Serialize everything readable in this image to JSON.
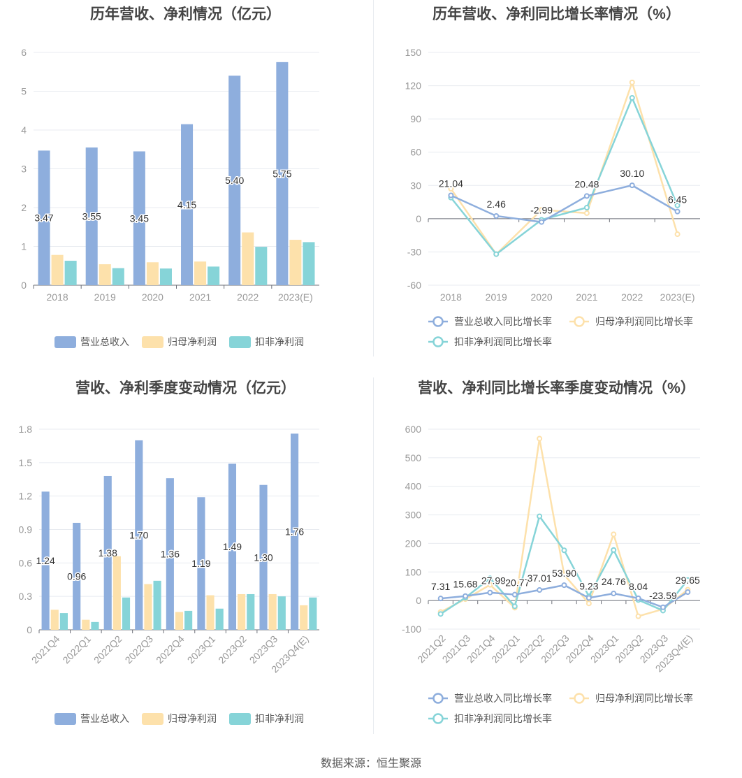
{
  "source": "数据来源：恒生聚源",
  "colors": {
    "revenue": "#8eaedd",
    "net_profit": "#fde1ab",
    "deducted": "#86d4d8",
    "axis_text": "#999999",
    "grid": "#e8ebf0",
    "label": "#333333"
  },
  "chart_data": [
    {
      "id": "annual_amount",
      "type": "bar",
      "title": "历年营收、净利情况（亿元）",
      "categories": [
        "2018",
        "2019",
        "2020",
        "2021",
        "2022",
        "2023(E)"
      ],
      "ylim": [
        0,
        6
      ],
      "yticks": [
        0,
        1,
        2,
        3,
        4,
        5,
        6
      ],
      "series": [
        {
          "name": "营业总收入",
          "color": "#8eaedd",
          "values": [
            3.47,
            3.55,
            3.45,
            4.15,
            5.4,
            5.75
          ],
          "labels": [
            "3.47",
            "3.55",
            "3.45",
            "4.15",
            "5.40",
            "5.75"
          ]
        },
        {
          "name": "归母净利润",
          "color": "#fde1ab",
          "values": [
            0.78,
            0.54,
            0.59,
            0.61,
            1.36,
            1.17
          ]
        },
        {
          "name": "扣非净利润",
          "color": "#86d4d8",
          "values": [
            0.63,
            0.44,
            0.43,
            0.48,
            0.99,
            1.11
          ]
        }
      ],
      "legend_position": "bottom",
      "grid": true
    },
    {
      "id": "annual_growth",
      "type": "line",
      "title": "历年营收、净利同比增长率情况（%）",
      "categories": [
        "2018",
        "2019",
        "2020",
        "2021",
        "2022",
        "2023(E)"
      ],
      "ylim": [
        -60,
        150
      ],
      "yticks": [
        -60,
        -30,
        0,
        30,
        60,
        90,
        120,
        150
      ],
      "series": [
        {
          "name": "营业总收入同比增长率",
          "color": "#8eaedd",
          "values": [
            21.04,
            2.46,
            -2.99,
            20.48,
            30.1,
            6.45
          ],
          "labels": [
            "21.04",
            "2.46",
            "-2.99",
            "20.48",
            "30.10",
            "6.45"
          ]
        },
        {
          "name": "归母净利润同比增长率",
          "color": "#fde1ab",
          "values": [
            27,
            -32,
            8,
            5,
            123,
            -14
          ]
        },
        {
          "name": "扣非净利润同比增长率",
          "color": "#86d4d8",
          "values": [
            19,
            -32,
            -1,
            10,
            109,
            12
          ]
        }
      ],
      "legend_position": "bottom",
      "grid": true
    },
    {
      "id": "quarterly_amount",
      "type": "bar",
      "title": "营收、净利季度变动情况（亿元）",
      "categories": [
        "2021Q4",
        "2022Q1",
        "2022Q2",
        "2022Q3",
        "2022Q4",
        "2023Q1",
        "2023Q2",
        "2023Q3",
        "2023Q4(E)"
      ],
      "ylim": [
        0,
        1.8
      ],
      "yticks": [
        0,
        0.3,
        0.6,
        0.9,
        1.2,
        1.5,
        1.8
      ],
      "series": [
        {
          "name": "营业总收入",
          "color": "#8eaedd",
          "values": [
            1.24,
            0.96,
            1.38,
            1.7,
            1.36,
            1.19,
            1.49,
            1.3,
            1.76
          ],
          "labels": [
            "1.24",
            "0.96",
            "1.38",
            "1.70",
            "1.36",
            "1.19",
            "1.49",
            "1.30",
            "1.76"
          ]
        },
        {
          "name": "归母净利润",
          "color": "#fde1ab",
          "values": [
            0.18,
            0.09,
            0.66,
            0.41,
            0.16,
            0.31,
            0.32,
            0.32,
            0.22
          ]
        },
        {
          "name": "扣非净利润",
          "color": "#86d4d8",
          "values": [
            0.15,
            0.07,
            0.29,
            0.44,
            0.17,
            0.19,
            0.32,
            0.3,
            0.29
          ]
        }
      ],
      "legend_position": "bottom",
      "grid": true
    },
    {
      "id": "quarterly_growth",
      "type": "line",
      "title": "营收、净利同比增长率季度变动情况（%）",
      "categories": [
        "2021Q2",
        "2021Q3",
        "2021Q4",
        "2022Q1",
        "2022Q2",
        "2022Q3",
        "2022Q4",
        "2023Q1",
        "2023Q2",
        "2023Q3",
        "2023Q4(E)"
      ],
      "ylim": [
        -100,
        600
      ],
      "yticks": [
        -100,
        0,
        100,
        200,
        300,
        400,
        500,
        600
      ],
      "series": [
        {
          "name": "营业总收入同比增长率",
          "color": "#8eaedd",
          "values": [
            7.31,
            15.68,
            27.99,
            20.77,
            37.01,
            53.9,
            9.23,
            24.76,
            8.04,
            -23.59,
            29.65
          ],
          "labels": [
            "7.31",
            "15.68",
            "27.99",
            "20.77",
            "37.01",
            "53.90",
            "9.23",
            "24.76",
            "8.04",
            "-23.59",
            "29.65"
          ]
        },
        {
          "name": "归母净利润同比增长率",
          "color": "#fde1ab",
          "values": [
            -40,
            5,
            55,
            -25,
            567,
            90,
            -10,
            232,
            -55,
            -30,
            38
          ]
        },
        {
          "name": "扣非净利润同比增长率",
          "color": "#86d4d8",
          "values": [
            -47,
            10,
            78,
            -20,
            295,
            176,
            15,
            177,
            2,
            -35,
            72
          ]
        }
      ],
      "legend_position": "bottom",
      "grid": true
    }
  ]
}
